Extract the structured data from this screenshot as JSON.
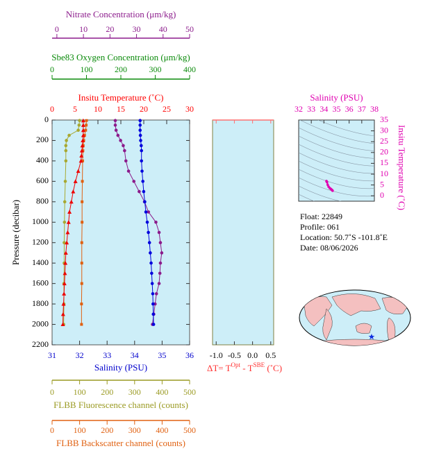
{
  "chart_data": [
    {
      "type": "profile",
      "ylabel": "Pressure (decibar)",
      "ylim": [
        0,
        2200
      ],
      "y_reversed": true,
      "yticks": [
        0,
        200,
        400,
        600,
        800,
        1000,
        1200,
        1400,
        1600,
        1800,
        2000,
        2200
      ],
      "axes": {
        "nitrate": {
          "label": "Nitrate Concentration (μm/kg)",
          "color": "#8b1a8b",
          "xlim": [
            -1.8,
            50
          ],
          "xticks": [
            0,
            10,
            20,
            30,
            40,
            50
          ]
        },
        "oxygen": {
          "label": "Sbe83 Oxygen Concentration (μm/kg)",
          "color": "#0a8a0a",
          "xlim": [
            0,
            400
          ],
          "xticks": [
            0,
            100,
            200,
            300,
            400
          ]
        },
        "temperature": {
          "label": "Insitu Temperature (˚C)",
          "color": "#ff0000",
          "xlim": [
            0,
            30
          ],
          "xticks": [
            0,
            5,
            10,
            15,
            20,
            25,
            30
          ]
        },
        "salinity": {
          "label": "Salinity (PSU)",
          "color": "#0000cc",
          "xlim": [
            31,
            36
          ],
          "xticks": [
            31,
            32,
            33,
            34,
            35,
            36
          ]
        },
        "fluorescence": {
          "label": "FLBB Fluorescence channel (counts)",
          "color": "#9a9a22",
          "xlim": [
            0,
            500
          ],
          "xticks": [
            0,
            100,
            200,
            300,
            400,
            500
          ]
        },
        "backscatter": {
          "label": "FLBB Backscatter channel (counts)",
          "color": "#e06010",
          "xlim": [
            0,
            500
          ],
          "xticks": [
            0,
            100,
            200,
            300,
            400,
            500
          ]
        }
      },
      "series": [
        {
          "axis": "fluorescence",
          "color": "#a8a830",
          "marker": "circle",
          "pressure": [
            5,
            50,
            100,
            150,
            200,
            250,
            300,
            400,
            600,
            800,
            1000,
            1200,
            1400,
            1600,
            1800,
            2000
          ],
          "values": [
            100,
            98,
            95,
            62,
            52,
            50,
            50,
            50,
            48,
            46,
            45,
            44,
            44,
            43,
            43,
            42
          ]
        },
        {
          "axis": "backscatter",
          "color": "#e06010",
          "marker": "square",
          "pressure": [
            5,
            50,
            100,
            150,
            200,
            250,
            300,
            400,
            600,
            800,
            1000,
            1200,
            1400,
            1600,
            1800,
            2000
          ],
          "values": [
            125,
            124,
            122,
            118,
            115,
            113,
            112,
            111,
            110,
            109,
            109,
            108,
            108,
            108,
            107,
            107
          ]
        },
        {
          "axis": "nitrate",
          "color": "#8b1a8b",
          "marker": "circle",
          "pressure": [
            5,
            50,
            100,
            150,
            200,
            250,
            300,
            400,
            500,
            600,
            700,
            800,
            900,
            1000,
            1100,
            1200,
            1300,
            1400,
            1500,
            1600,
            1700,
            1800,
            1900,
            2000
          ],
          "values": [
            22,
            22,
            22.3,
            23,
            24,
            25,
            25.5,
            26,
            27,
            29,
            31,
            33,
            34.5,
            37.3,
            38.5,
            39,
            39.5,
            39,
            38.8,
            38.5,
            37.5,
            37,
            36.5,
            36
          ]
        },
        {
          "axis": "salinity",
          "color": "#0000dd",
          "marker": "circle",
          "pressure": [
            5,
            50,
            100,
            150,
            200,
            250,
            300,
            400,
            500,
            600,
            700,
            800,
            900,
            1000,
            1100,
            1200,
            1300,
            1400,
            1500,
            1600,
            1700,
            1800,
            1900,
            2000
          ],
          "values": [
            34.2,
            34.2,
            34.2,
            34.21,
            34.22,
            34.24,
            34.25,
            34.25,
            34.27,
            34.3,
            34.33,
            34.37,
            34.41,
            34.46,
            34.5,
            34.54,
            34.57,
            34.6,
            34.62,
            34.64,
            34.66,
            34.67,
            34.68,
            34.69
          ]
        },
        {
          "axis": "temperature",
          "color": "#ee0000",
          "marker": "triangle",
          "pressure": [
            5,
            50,
            100,
            150,
            200,
            250,
            300,
            350,
            400,
            500,
            600,
            700,
            800,
            900,
            1000,
            1100,
            1200,
            1300,
            1400,
            1500,
            1600,
            1700,
            1800,
            1900,
            2000
          ],
          "values": [
            6.8,
            6.8,
            6.8,
            6.8,
            6.7,
            6.6,
            6.5,
            6.4,
            6.3,
            5.7,
            5.1,
            4.6,
            4.2,
            3.8,
            3.6,
            3.4,
            3.2,
            3.0,
            2.9,
            2.8,
            2.7,
            2.6,
            2.5,
            2.4,
            2.35
          ]
        }
      ]
    },
    {
      "type": "delta",
      "label_parts": [
        "ΔT= T",
        "Opt",
        " - T",
        "SBE",
        " (˚C)"
      ],
      "label_color": "#ff3030",
      "xlim": [
        -1.1,
        0.58
      ],
      "xticks": [
        {
          "value": -1,
          "label": "-1.0"
        },
        -0.5,
        {
          "value": 0,
          "label": "0.0"
        },
        0.5
      ],
      "ylim": [
        0,
        2200
      ],
      "y_reversed": true
    },
    {
      "type": "ts",
      "xlabel": "Salinity (PSU)",
      "ylabel": "Insitu Temperature (˚C)",
      "color": "#e000b0",
      "xlim": [
        32,
        38
      ],
      "xticks": [
        32,
        33,
        34,
        35,
        36,
        37,
        38
      ],
      "ylim": [
        -2.5,
        35
      ],
      "yticks": [
        0,
        5,
        10,
        15,
        20,
        25,
        30,
        35
      ],
      "salinity": [
        34.2,
        34.22,
        34.25,
        34.3,
        34.37,
        34.46,
        34.54,
        34.6,
        34.64,
        34.67,
        34.69
      ],
      "temperature": [
        6.8,
        6.6,
        6.3,
        5.1,
        4.2,
        3.6,
        3.2,
        2.9,
        2.7,
        2.5,
        2.35
      ]
    }
  ],
  "float_info": [
    "Float:  22849",
    "Profile:  061",
    "Location:  50.7˚S  -101.8˚E",
    "Date:  08/06/2026"
  ]
}
